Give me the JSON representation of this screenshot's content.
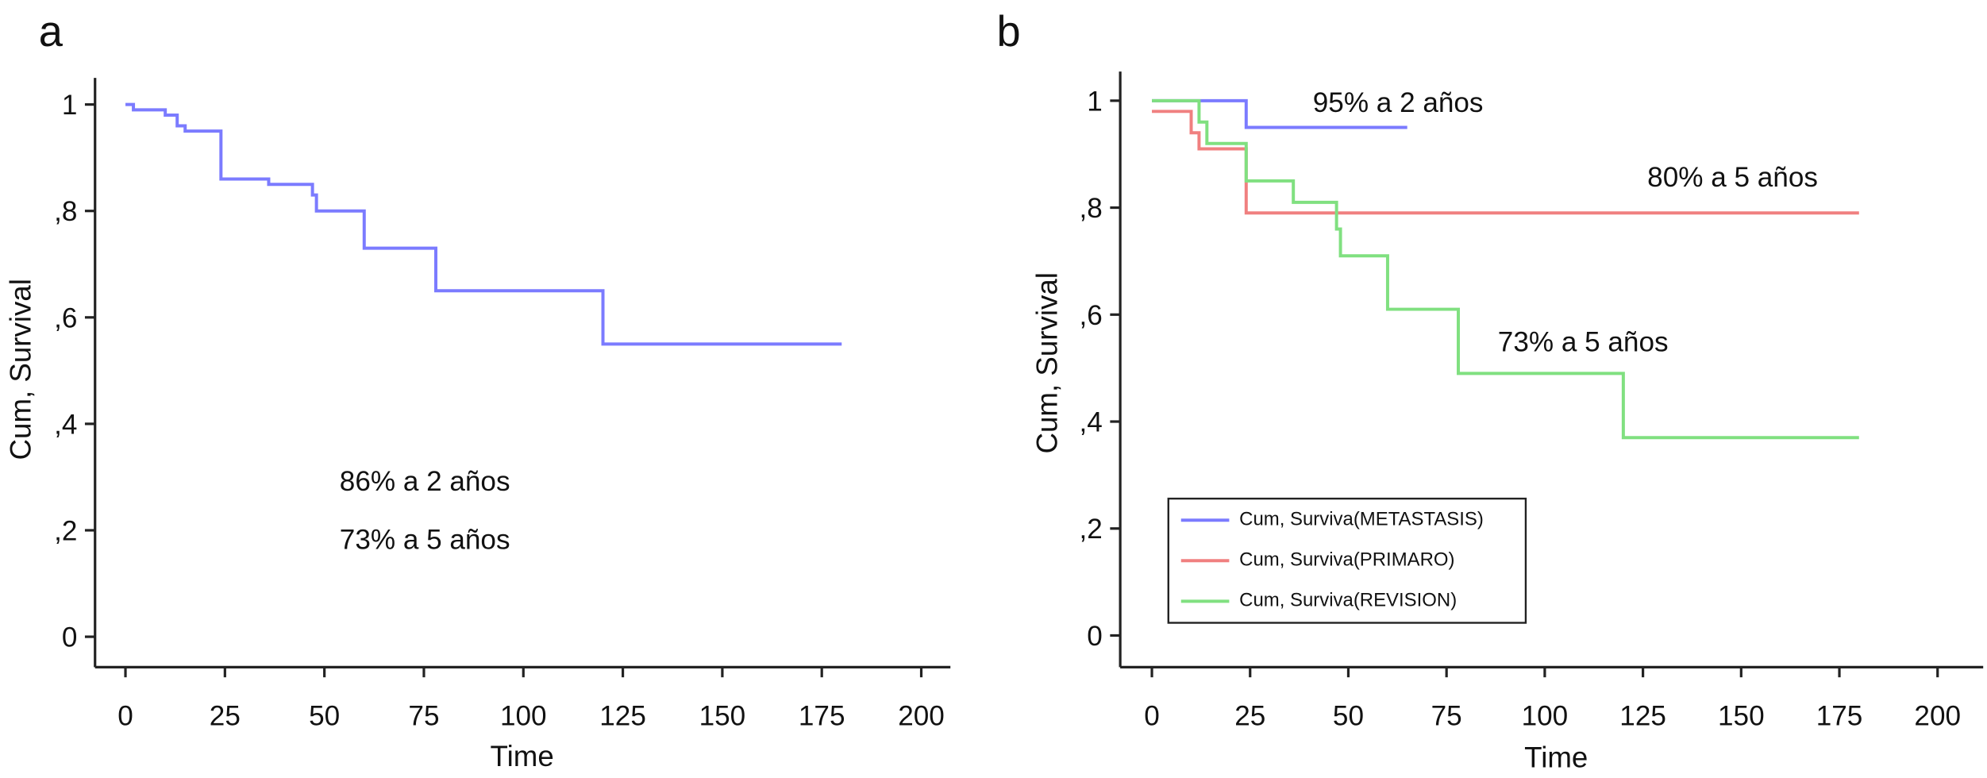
{
  "chart_data": [
    {
      "type": "step",
      "label": "a",
      "x_label": "Time",
      "y_label": "Cum, Survival",
      "xlim": [
        0,
        200
      ],
      "ylim": [
        0,
        1
      ],
      "xticks": [
        0,
        25,
        50,
        75,
        100,
        125,
        150,
        175,
        200
      ],
      "yticks": [
        0,
        {
          "value": 0.2,
          "label": ",2"
        },
        {
          "value": 0.4,
          "label": ",4"
        },
        {
          "value": 0.6,
          "label": ",6"
        },
        {
          "value": 0.8,
          "label": ",8"
        },
        1
      ],
      "annotations": [
        "86% a 2 años",
        "73% a 5 años"
      ],
      "series": [
        {
          "color": "#7b7bff",
          "x": [
            0,
            2,
            10,
            13,
            15,
            24,
            36,
            47,
            48,
            60,
            78,
            120,
            180
          ],
          "values": [
            1,
            0.99,
            0.98,
            0.96,
            0.95,
            0.86,
            0.85,
            0.83,
            0.8,
            0.73,
            0.65,
            0.55,
            0.55
          ]
        }
      ]
    },
    {
      "type": "step",
      "label": "b",
      "x_label": "Time",
      "y_label": "Cum, Survival",
      "xlim": [
        0,
        200
      ],
      "ylim": [
        0,
        1
      ],
      "xticks": [
        0,
        25,
        50,
        75,
        100,
        125,
        150,
        175,
        200
      ],
      "yticks": [
        0,
        {
          "value": 0.2,
          "label": ",2"
        },
        {
          "value": 0.4,
          "label": ",4"
        },
        {
          "value": 0.6,
          "label": ",6"
        },
        {
          "value": 0.8,
          "label": ",8"
        },
        1
      ],
      "annotations": [
        "95% a 2 años",
        "80% a 5 años",
        "73% a 5 años"
      ],
      "legend": "lower left",
      "series": [
        {
          "name": "Cum, Surviva(METASTASIS)",
          "color": "#7b7bff",
          "x": [
            0,
            24,
            65
          ],
          "values": [
            1,
            0.95,
            0.95
          ]
        },
        {
          "name": "Cum, Surviva(PRIMARO)",
          "color": "#f08080",
          "x": [
            0,
            10,
            12,
            24,
            180
          ],
          "values": [
            0.98,
            0.94,
            0.91,
            0.79,
            0.79
          ]
        },
        {
          "name": "Cum, Surviva(REVISION)",
          "color": "#80e080",
          "x": [
            0,
            12,
            14,
            24,
            36,
            47,
            48,
            60,
            78,
            120,
            180
          ],
          "values": [
            1,
            0.96,
            0.92,
            0.85,
            0.81,
            0.76,
            0.71,
            0.61,
            0.49,
            0.37,
            0.37
          ]
        }
      ]
    }
  ]
}
